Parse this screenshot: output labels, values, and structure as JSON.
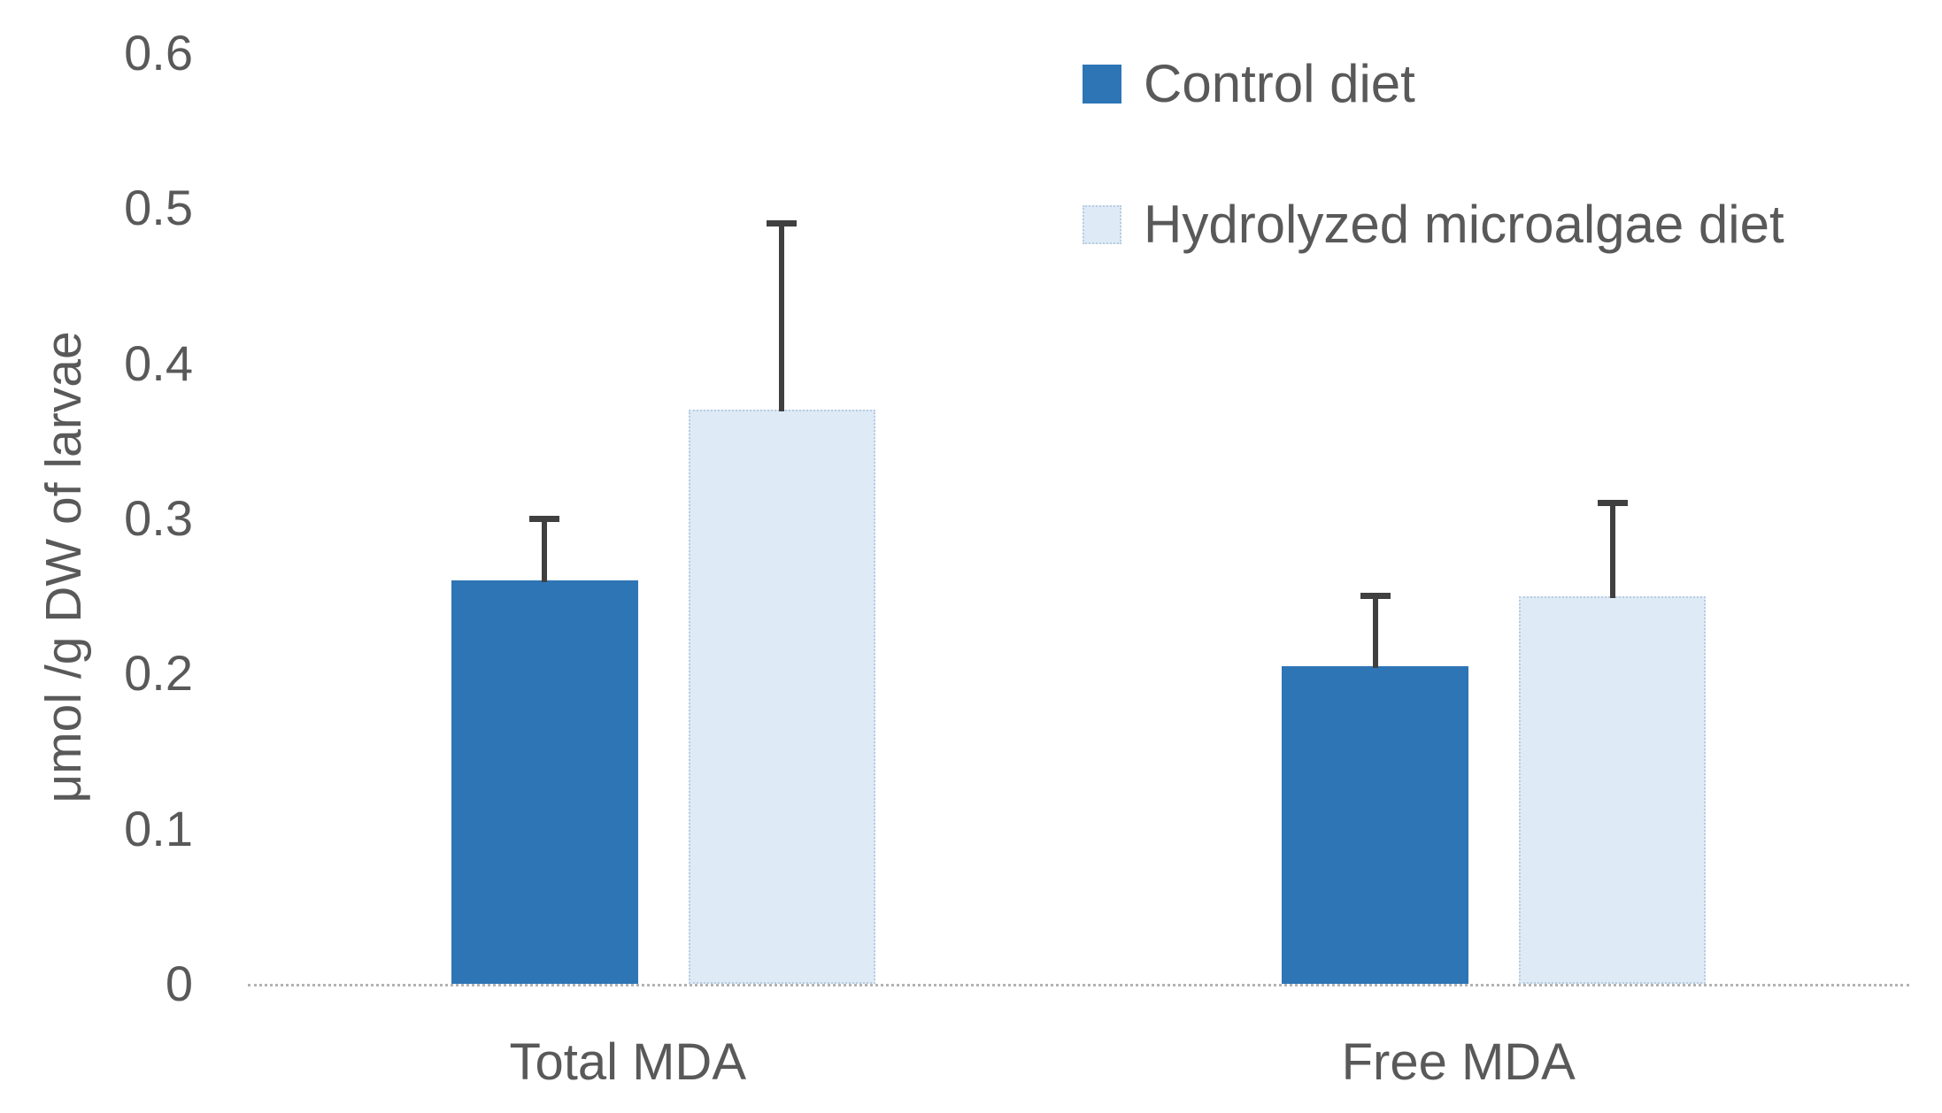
{
  "chart_data": {
    "type": "bar",
    "title": "",
    "xlabel": "",
    "ylabel": "μmol /g DW of larvae",
    "ylim": [
      0,
      0.6
    ],
    "yticks": [
      {
        "value": 0.0,
        "label": "0"
      },
      {
        "value": 0.1,
        "label": "0.1"
      },
      {
        "value": 0.2,
        "label": "0.2"
      },
      {
        "value": 0.3,
        "label": "0.3"
      },
      {
        "value": 0.4,
        "label": "0.4"
      },
      {
        "value": 0.5,
        "label": "0.5"
      },
      {
        "value": 0.6,
        "label": "0.6"
      }
    ],
    "categories": [
      "Total MDA",
      "Free MDA"
    ],
    "series": [
      {
        "name": "Control diet",
        "values": [
          0.26,
          0.205
        ],
        "errors_plus": [
          0.04,
          0.045
        ],
        "color": "#2E75B6",
        "border": "none"
      },
      {
        "name": "Hydrolyzed microalgae diet",
        "values": [
          0.37,
          0.25
        ],
        "errors_plus": [
          0.12,
          0.06
        ],
        "color": "#DEEBF7",
        "border": "dotted",
        "border_color": "#B9CCE0"
      }
    ],
    "error_bar_color": "#404040",
    "axis_line_color": "#B3B3B3",
    "text_color": "#595959",
    "grid": false,
    "legend_position": "top-right"
  }
}
